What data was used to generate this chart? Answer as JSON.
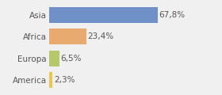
{
  "categories": [
    "America",
    "Europa",
    "Africa",
    "Asia"
  ],
  "values": [
    2.3,
    6.5,
    23.4,
    67.8
  ],
  "labels": [
    "2,3%",
    "6,5%",
    "23,4%",
    "67,8%"
  ],
  "bar_colors": [
    "#e8c84a",
    "#b5c96a",
    "#e8aa6e",
    "#7090c8"
  ],
  "background_color": "#f0f0f0",
  "xlim": [
    0,
    105
  ],
  "bar_height": 0.72,
  "label_fontsize": 7.5,
  "tick_fontsize": 7.5,
  "figsize": [
    2.8,
    1.2
  ],
  "dpi": 100
}
